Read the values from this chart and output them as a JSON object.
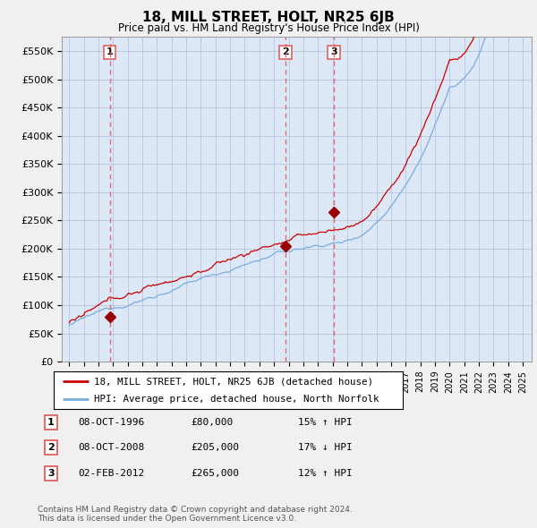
{
  "title": "18, MILL STREET, HOLT, NR25 6JB",
  "subtitle": "Price paid vs. HM Land Registry's House Price Index (HPI)",
  "ylabel_ticks": [
    "£0",
    "£50K",
    "£100K",
    "£150K",
    "£200K",
    "£250K",
    "£300K",
    "£350K",
    "£400K",
    "£450K",
    "£500K",
    "£550K"
  ],
  "ytick_values": [
    0,
    50000,
    100000,
    150000,
    200000,
    250000,
    300000,
    350000,
    400000,
    450000,
    500000,
    550000
  ],
  "ylim": [
    0,
    575000
  ],
  "xlim_min": 1993.5,
  "xlim_max": 2025.6,
  "legend_line1": "18, MILL STREET, HOLT, NR25 6JB (detached house)",
  "legend_line2": "HPI: Average price, detached house, North Norfolk",
  "transactions": [
    {
      "num": 1,
      "date": "08-OCT-1996",
      "price": 80000,
      "year": 1996.78,
      "hpi_rel": "15% ↑ HPI"
    },
    {
      "num": 2,
      "date": "08-OCT-2008",
      "price": 205000,
      "year": 2008.78,
      "hpi_rel": "17% ↓ HPI"
    },
    {
      "num": 3,
      "date": "02-FEB-2012",
      "price": 265000,
      "year": 2012.09,
      "hpi_rel": "12% ↑ HPI"
    }
  ],
  "copyright_text": "Contains HM Land Registry data © Crown copyright and database right 2024.\nThis data is licensed under the Open Government Licence v3.0.",
  "bg_color": "#f0f0f0",
  "plot_bg_color": "#dce8f5",
  "grid_color": "#9999bb",
  "hpi_color": "#7aaddd",
  "price_color": "#cc0000",
  "dashed_color": "#e06060",
  "marker_color": "#990000"
}
